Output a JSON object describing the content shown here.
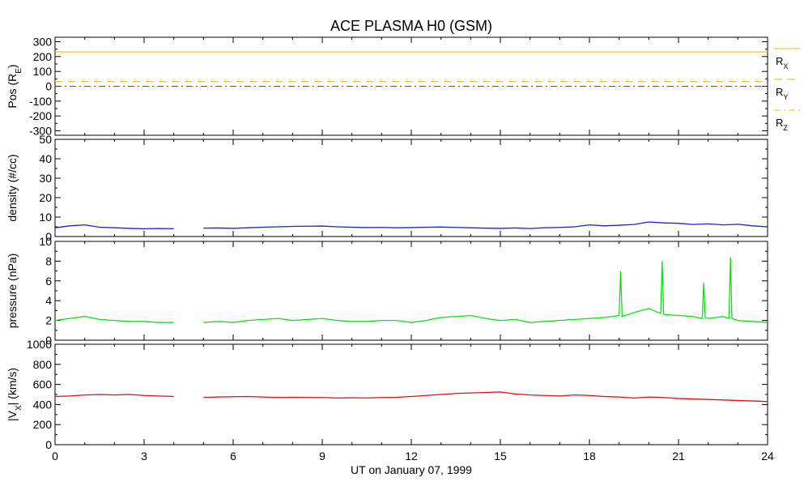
{
  "title": "ACE PLASMA H0 (GSM)",
  "xlabel": "UT on January 07, 1999",
  "x_ticks": [
    "0",
    "3",
    "6",
    "9",
    "12",
    "15",
    "18",
    "21",
    "24"
  ],
  "colors": {
    "pos": "#f0b400",
    "density": "#2020d0",
    "pressure": "#10e010",
    "vx": "#e01010"
  },
  "chart_data": [
    {
      "type": "line",
      "panel": "position",
      "ylabel": "Pos (R",
      "ylabel_sub": "E",
      "ylabel_end": ")",
      "ylim": [
        -330,
        330
      ],
      "y_ticks": [
        "300",
        "200",
        "100",
        "0",
        "-100",
        "-200",
        "-300"
      ],
      "y_tick_values": [
        300,
        200,
        100,
        0,
        -100,
        -200,
        -300
      ],
      "x": [
        0,
        24
      ],
      "series": [
        {
          "name": "R",
          "sub": "X",
          "style": "solid",
          "values": [
            232,
            232
          ]
        },
        {
          "name": "R",
          "sub": "Y",
          "style": "dashed",
          "values": [
            32,
            32
          ]
        },
        {
          "name": "R",
          "sub": "Z",
          "style": "dashdot",
          "values": [
            -1,
            -1
          ]
        }
      ]
    },
    {
      "type": "line",
      "panel": "density",
      "ylabel": "density (#/cc)",
      "ylim": [
        0,
        50
      ],
      "y_ticks": [
        "50",
        "40",
        "30",
        "20",
        "10",
        "0"
      ],
      "y_tick_values": [
        50,
        40,
        30,
        20,
        10,
        0
      ],
      "x": [
        0,
        0.5,
        1.0,
        1.5,
        2.0,
        2.5,
        3.0,
        3.5,
        4.0,
        4.5,
        5.0,
        5.5,
        6.0,
        6.5,
        7.0,
        7.5,
        8.0,
        8.5,
        9.0,
        9.5,
        10.0,
        10.5,
        11.0,
        11.5,
        12.0,
        12.5,
        13.0,
        13.5,
        14.0,
        14.5,
        15.0,
        15.5,
        16.0,
        16.5,
        17.0,
        17.5,
        18.0,
        18.5,
        19.0,
        19.5,
        20.0,
        20.5,
        21.0,
        21.5,
        22.0,
        22.5,
        23.0,
        23.5,
        24.0
      ],
      "values": [
        4.5,
        5.5,
        6.0,
        4.8,
        4.5,
        4.2,
        4.0,
        4.1,
        4.0,
        null,
        4.3,
        4.4,
        4.2,
        4.5,
        4.8,
        5.0,
        5.2,
        5.3,
        5.4,
        5.0,
        4.8,
        4.6,
        4.7,
        4.5,
        4.6,
        4.8,
        4.9,
        4.7,
        4.5,
        4.3,
        4.2,
        4.4,
        4.1,
        4.5,
        4.7,
        5.0,
        6.0,
        5.5,
        5.8,
        6.2,
        7.5,
        7.0,
        6.8,
        6.2,
        6.5,
        6.0,
        6.3,
        5.5,
        5.0
      ]
    },
    {
      "type": "line",
      "panel": "pressure",
      "ylabel": "pressure (nPa)",
      "ylim": [
        0,
        10
      ],
      "y_ticks": [
        "10",
        "8",
        "6",
        "4",
        "2",
        "0"
      ],
      "y_tick_values": [
        10,
        8,
        6,
        4,
        2,
        0
      ],
      "x": [
        0,
        0.5,
        1.0,
        1.5,
        2.0,
        2.5,
        3.0,
        3.5,
        4.0,
        4.5,
        5.0,
        5.5,
        6.0,
        6.5,
        7.0,
        7.5,
        8.0,
        8.5,
        9.0,
        9.5,
        10.0,
        10.5,
        11.0,
        11.5,
        12.0,
        12.5,
        13.0,
        13.5,
        14.0,
        14.5,
        15.0,
        15.5,
        16.0,
        16.5,
        17.0,
        17.5,
        18.0,
        18.5,
        19.0,
        19.05,
        19.1,
        19.5,
        20.0,
        20.4,
        20.45,
        20.5,
        21.0,
        21.5,
        21.8,
        21.85,
        21.9,
        22.0,
        22.5,
        22.7,
        22.75,
        22.8,
        23.0,
        23.5,
        24.0
      ],
      "values": [
        2.0,
        2.2,
        2.4,
        2.1,
        2.0,
        1.9,
        1.9,
        1.8,
        1.8,
        null,
        1.8,
        1.9,
        1.8,
        2.0,
        2.1,
        2.2,
        2.0,
        2.1,
        2.2,
        2.0,
        1.9,
        1.9,
        2.0,
        2.0,
        1.8,
        2.0,
        2.3,
        2.4,
        2.5,
        2.2,
        2.0,
        2.1,
        1.8,
        1.9,
        2.0,
        2.1,
        2.2,
        2.3,
        2.5,
        7.0,
        2.4,
        2.8,
        3.2,
        2.7,
        8.0,
        2.6,
        2.5,
        2.4,
        2.2,
        5.8,
        2.3,
        2.2,
        2.4,
        2.2,
        8.4,
        2.2,
        2.0,
        1.9,
        1.8
      ]
    },
    {
      "type": "line",
      "panel": "vx",
      "ylabel": "|V",
      "ylabel_sub": "X",
      "ylabel_end": "| (km/s)",
      "ylim": [
        0,
        1000
      ],
      "y_ticks": [
        "1000",
        "800",
        "600",
        "400",
        "200",
        "0"
      ],
      "y_tick_values": [
        1000,
        800,
        600,
        400,
        200,
        0
      ],
      "x": [
        0,
        0.5,
        1.0,
        1.5,
        2.0,
        2.5,
        3.0,
        3.5,
        4.0,
        4.5,
        5.0,
        5.5,
        6.0,
        6.5,
        7.0,
        7.5,
        8.0,
        8.5,
        9.0,
        9.5,
        10.0,
        10.5,
        11.0,
        11.5,
        12.0,
        12.5,
        13.0,
        13.5,
        14.0,
        14.5,
        15.0,
        15.5,
        16.0,
        16.5,
        17.0,
        17.5,
        18.0,
        18.5,
        19.0,
        19.5,
        20.0,
        20.5,
        21.0,
        21.5,
        22.0,
        22.5,
        23.0,
        23.5,
        24.0
      ],
      "values": [
        480,
        485,
        495,
        500,
        495,
        500,
        490,
        485,
        480,
        null,
        470,
        475,
        478,
        480,
        475,
        470,
        472,
        470,
        470,
        465,
        468,
        465,
        470,
        472,
        480,
        490,
        500,
        510,
        515,
        520,
        525,
        505,
        495,
        490,
        485,
        495,
        490,
        480,
        475,
        465,
        475,
        470,
        460,
        455,
        450,
        445,
        440,
        435,
        430
      ]
    }
  ]
}
